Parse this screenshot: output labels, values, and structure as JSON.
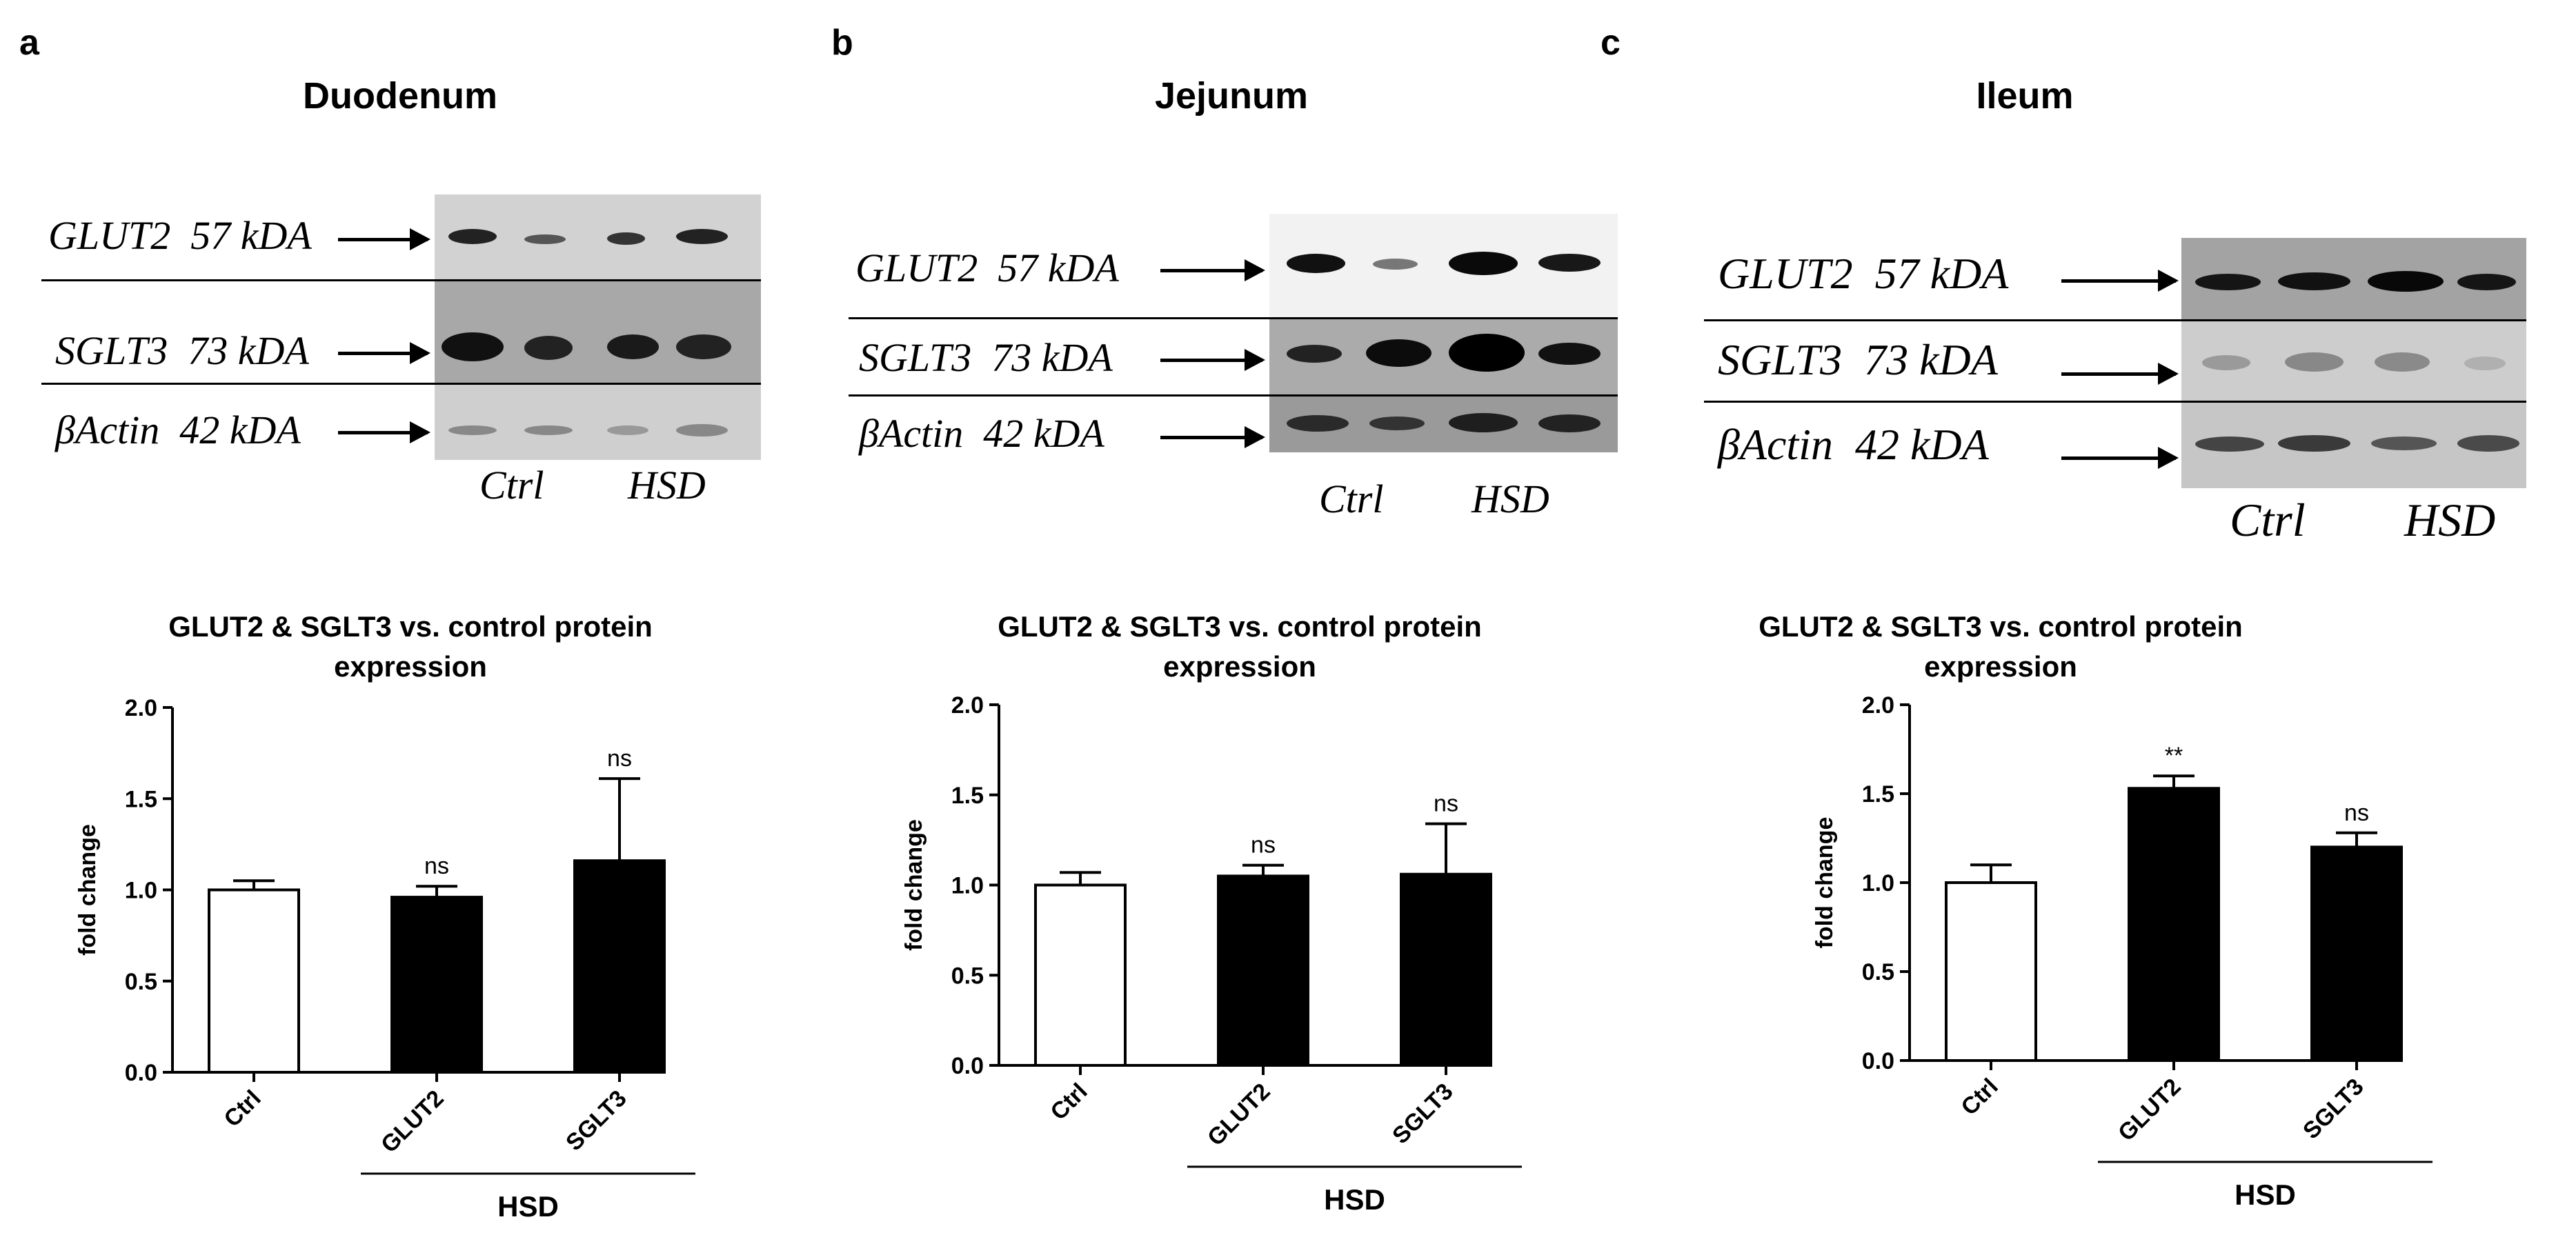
{
  "panels": [
    {
      "letter": "a",
      "tissue": "Duodenum",
      "blot": {
        "rows": [
          {
            "protein": "GLUT2",
            "kda": "57 kDA"
          },
          {
            "protein": "SGLT3",
            "kda": "73 kDA"
          },
          {
            "protein": "βActin",
            "kda": "42 kDA"
          }
        ],
        "lanes": [
          "Ctrl",
          "HSD"
        ]
      },
      "title": "GLUT2 & SGLT3 vs. control protein expression",
      "title_line1": "GLUT2 & SGLT3 vs. control protein",
      "title_line2": "expression"
    },
    {
      "letter": "b",
      "tissue": "Jejunum",
      "blot": {
        "rows": [
          {
            "protein": "GLUT2",
            "kda": "57 kDA"
          },
          {
            "protein": "SGLT3",
            "kda": "73 kDA"
          },
          {
            "protein": "βActin",
            "kda": "42 kDA"
          }
        ],
        "lanes": [
          "Ctrl",
          "HSD"
        ]
      },
      "title": "GLUT2 & SGLT3 vs. control protein expression",
      "title_line1": "GLUT2 & SGLT3 vs. control protein",
      "title_line2": "expression"
    },
    {
      "letter": "c",
      "tissue": "Ileum",
      "blot": {
        "rows": [
          {
            "protein": "GLUT2",
            "kda": "57 kDA"
          },
          {
            "protein": "SGLT3",
            "kda": "73 kDA"
          },
          {
            "protein": "βActin",
            "kda": "42 kDA"
          }
        ],
        "lanes": [
          "Ctrl",
          "HSD"
        ]
      },
      "title": "GLUT2 & SGLT3 vs. control protein expression",
      "title_line1": "GLUT2 & SGLT3 vs. control protein",
      "title_line2": "expression"
    }
  ],
  "chart_data": [
    {
      "type": "bar",
      "title": "GLUT2 & SGLT3 vs. control protein expression",
      "categories": [
        "Ctrl",
        "GLUT2",
        "SGLT3"
      ],
      "values": [
        1.0,
        0.96,
        1.16
      ],
      "errors": [
        0.05,
        0.06,
        0.45
      ],
      "annotations": [
        "",
        "ns",
        "ns"
      ],
      "bar_colors": [
        "#ffffff",
        "#000000",
        "#000000"
      ],
      "group_label": "HSD",
      "ylabel": "fold change",
      "ylim": [
        0,
        2.0
      ],
      "yticks": [
        "0.0",
        "0.5",
        "1.0",
        "1.5",
        "2.0"
      ]
    },
    {
      "type": "bar",
      "title": "GLUT2 & SGLT3 vs. control protein expression",
      "categories": [
        "Ctrl",
        "GLUT2",
        "SGLT3"
      ],
      "values": [
        1.0,
        1.05,
        1.06
      ],
      "errors": [
        0.07,
        0.06,
        0.28
      ],
      "annotations": [
        "",
        "ns",
        "ns"
      ],
      "bar_colors": [
        "#ffffff",
        "#000000",
        "#000000"
      ],
      "group_label": "HSD",
      "ylabel": "fold change",
      "ylim": [
        0,
        2.0
      ],
      "yticks": [
        "0.0",
        "0.5",
        "1.0",
        "1.5",
        "2.0"
      ]
    },
    {
      "type": "bar",
      "title": "GLUT2 & SGLT3 vs. control protein expression",
      "categories": [
        "Ctrl",
        "GLUT2",
        "SGLT3"
      ],
      "values": [
        1.0,
        1.53,
        1.2
      ],
      "errors": [
        0.1,
        0.07,
        0.08
      ],
      "annotations": [
        "",
        "**",
        "ns"
      ],
      "bar_colors": [
        "#ffffff",
        "#000000",
        "#000000"
      ],
      "group_label": "HSD",
      "ylabel": "fold change",
      "ylim": [
        0,
        2.0
      ],
      "yticks": [
        "0.0",
        "0.5",
        "1.0",
        "1.5",
        "2.0"
      ]
    }
  ]
}
